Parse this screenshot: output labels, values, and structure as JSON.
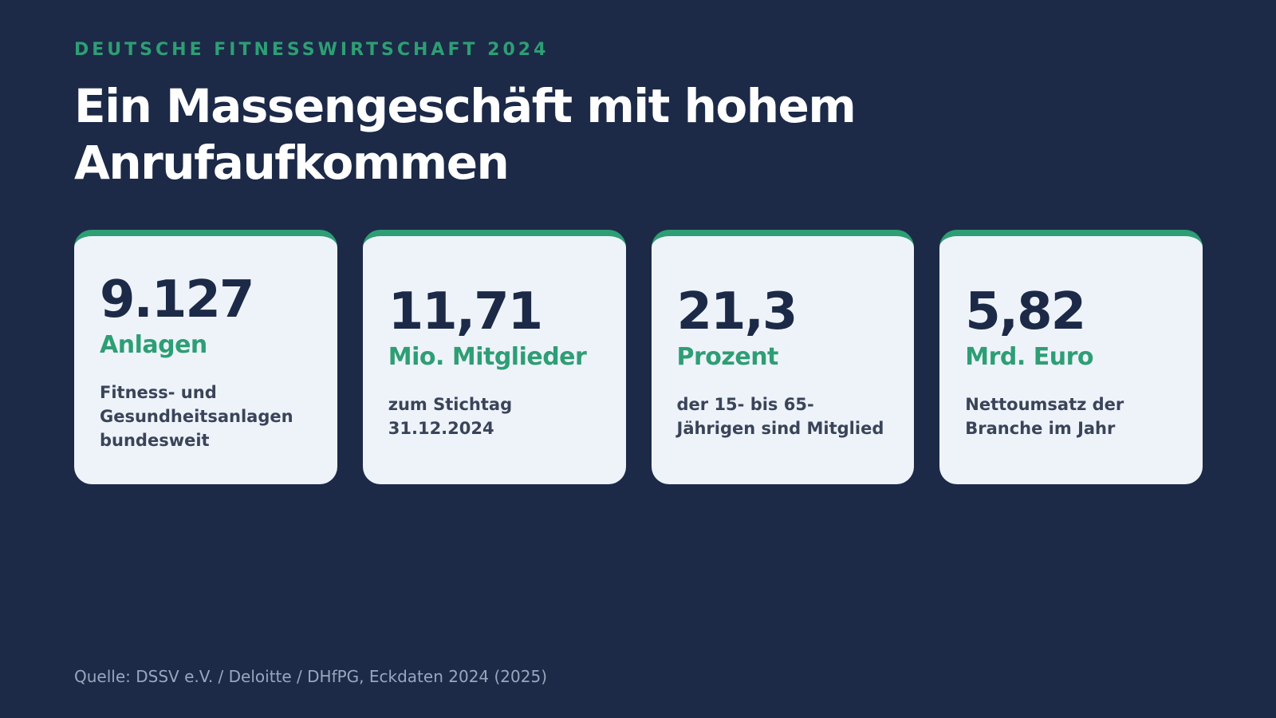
{
  "header": {
    "eyebrow": "DEUTSCHE FITNESSWIRTSCHAFT 2024",
    "title": "Ein Massengeschäft mit hohem Anrufaufkommen"
  },
  "cards": [
    {
      "value": "9.127",
      "unit": "Anlagen",
      "description": "Fitness- und Gesundheitsanlagen bundesweit"
    },
    {
      "value": "11,71",
      "unit": "Mio. Mitglieder",
      "description": "zum Stichtag 31.12.2024"
    },
    {
      "value": "21,3",
      "unit": "Prozent",
      "description": "der 15- bis 65-Jährigen sind Mitglied"
    },
    {
      "value": "5,82",
      "unit": "Mrd. Euro",
      "description": "Nettoumsatz der Branche im Jahr"
    }
  ],
  "footer": {
    "source": "Quelle: DSSV e.V. / Deloitte / DHfPG, Eckdaten 2024 (2025)"
  },
  "colors": {
    "background": "#1c2a48",
    "accent": "#2e9e74",
    "card": "#eef3fa"
  }
}
